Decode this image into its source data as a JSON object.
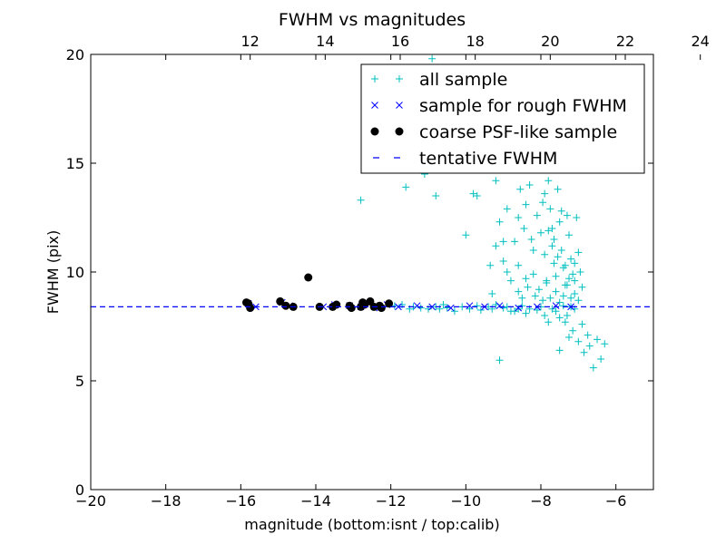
{
  "chart_data": {
    "type": "scatter",
    "title": "FWHM vs magnitudes",
    "xlabel": "magnitude (bottom:isnt / top:calib)",
    "ylabel": "FWHM (pix)",
    "xlim": [
      -20,
      -5
    ],
    "ylim": [
      0,
      20
    ],
    "top_axis": {
      "offset": 27.75,
      "ticks": [
        12,
        14,
        16,
        18,
        20,
        22,
        24
      ],
      "tick_labels": [
        "12",
        "14",
        "16",
        "18",
        "20",
        "22",
        "24"
      ]
    },
    "x_ticks": [
      -20,
      -18,
      -16,
      -14,
      -12,
      -10,
      -8,
      -6
    ],
    "x_tick_labels": [
      "−20",
      "−18",
      "−16",
      "−14",
      "−12",
      "−10",
      "−8",
      "−6"
    ],
    "y_ticks": [
      0,
      5,
      10,
      15,
      20
    ],
    "y_tick_labels": [
      "0",
      "5",
      "10",
      "15",
      "20"
    ],
    "grid": false,
    "legend_position": "top-right",
    "series": [
      {
        "name": "all sample",
        "marker": "plus",
        "color": "#00bfbf",
        "points": [
          [
            -11.9,
            8.45
          ],
          [
            -11.7,
            8.5
          ],
          [
            -11.5,
            8.3
          ],
          [
            -11.4,
            8.4
          ],
          [
            -11.2,
            8.35
          ],
          [
            -11.0,
            8.3
          ],
          [
            -10.8,
            8.4
          ],
          [
            -10.7,
            8.3
          ],
          [
            -10.6,
            8.5
          ],
          [
            -10.5,
            8.35
          ],
          [
            -10.3,
            8.2
          ],
          [
            -10.1,
            8.4
          ],
          [
            -9.9,
            8.3
          ],
          [
            -9.7,
            8.45
          ],
          [
            -9.6,
            8.25
          ],
          [
            -9.4,
            8.4
          ],
          [
            -9.3,
            8.3
          ],
          [
            -9.2,
            8.5
          ],
          [
            -9.0,
            8.35
          ],
          [
            -8.9,
            8.4
          ],
          [
            -8.8,
            8.2
          ],
          [
            -8.6,
            8.3
          ],
          [
            -8.5,
            8.45
          ],
          [
            -8.4,
            8.1
          ],
          [
            -8.3,
            8.3
          ],
          [
            -8.1,
            8.25
          ],
          [
            -8.0,
            8.4
          ],
          [
            -7.9,
            8.0
          ],
          [
            -7.8,
            7.7
          ],
          [
            -7.7,
            8.3
          ],
          [
            -7.6,
            8.2
          ],
          [
            -7.5,
            7.9
          ],
          [
            -7.4,
            8.45
          ],
          [
            -7.3,
            8.0
          ],
          [
            -7.2,
            8.4
          ],
          [
            -7.1,
            8.3
          ],
          [
            -11.6,
            13.9
          ],
          [
            -11.1,
            14.5
          ],
          [
            -10.8,
            13.5
          ],
          [
            -10.5,
            15.6
          ],
          [
            -10.4,
            15.0
          ],
          [
            -10.0,
            11.7
          ],
          [
            -9.8,
            13.6
          ],
          [
            -9.7,
            13.5
          ],
          [
            -9.6,
            15.2
          ],
          [
            -9.2,
            14.2
          ],
          [
            -9.1,
            12.3
          ],
          [
            -9.0,
            11.4
          ],
          [
            -9.1,
            5.95
          ],
          [
            -12.8,
            13.3
          ],
          [
            -10.9,
            19.8
          ],
          [
            -9.3,
            9.0
          ],
          [
            -9.35,
            10.3
          ],
          [
            -9.0,
            10.5
          ],
          [
            -8.9,
            10.0
          ],
          [
            -8.7,
            11.4
          ],
          [
            -8.6,
            10.3
          ],
          [
            -8.55,
            13.8
          ],
          [
            -8.45,
            12.0
          ],
          [
            -8.4,
            9.7
          ],
          [
            -8.3,
            14.0
          ],
          [
            -8.25,
            11.5
          ],
          [
            -8.2,
            9.9
          ],
          [
            -8.1,
            12.6
          ],
          [
            -8.0,
            11.8
          ],
          [
            -7.95,
            13.2
          ],
          [
            -7.9,
            10.8
          ],
          [
            -7.85,
            9.5
          ],
          [
            -7.8,
            14.2
          ],
          [
            -7.75,
            12.9
          ],
          [
            -7.7,
            11.2
          ],
          [
            -7.65,
            10.4
          ],
          [
            -7.6,
            9.8
          ],
          [
            -7.55,
            13.8
          ],
          [
            -7.5,
            12.3
          ],
          [
            -7.45,
            11.0
          ],
          [
            -7.4,
            10.2
          ],
          [
            -7.35,
            9.4
          ],
          [
            -7.3,
            12.6
          ],
          [
            -7.25,
            11.7
          ],
          [
            -7.2,
            10.6
          ],
          [
            -7.15,
            9.9
          ],
          [
            -7.1,
            9.0
          ],
          [
            -7.05,
            12.5
          ],
          [
            -7.0,
            10.9
          ],
          [
            -6.95,
            10.0
          ],
          [
            -6.9,
            9.3
          ],
          [
            -8.15,
            8.9
          ],
          [
            -8.05,
            9.2
          ],
          [
            -7.95,
            8.7
          ],
          [
            -7.85,
            9.6
          ],
          [
            -7.75,
            8.8
          ],
          [
            -7.6,
            9.1
          ],
          [
            -7.5,
            8.6
          ],
          [
            -7.4,
            8.9
          ],
          [
            -7.3,
            9.4
          ],
          [
            -7.2,
            8.8
          ],
          [
            -7.1,
            9.6
          ],
          [
            -7.0,
            8.7
          ],
          [
            -8.7,
            8.2
          ],
          [
            -8.5,
            8.8
          ],
          [
            -8.35,
            9.3
          ],
          [
            -7.15,
            7.3
          ],
          [
            -7.0,
            6.8
          ],
          [
            -6.9,
            7.6
          ],
          [
            -6.85,
            6.3
          ],
          [
            -6.75,
            7.1
          ],
          [
            -6.7,
            6.6
          ],
          [
            -6.6,
            5.6
          ],
          [
            -6.5,
            6.9
          ],
          [
            -6.4,
            6.0
          ],
          [
            -7.35,
            7.7
          ],
          [
            -7.25,
            7.0
          ],
          [
            -7.5,
            6.4
          ],
          [
            -6.3,
            6.7
          ],
          [
            -8.2,
            11.0
          ],
          [
            -7.8,
            11.9
          ],
          [
            -7.45,
            12.8
          ],
          [
            -7.65,
            11.5
          ],
          [
            -7.55,
            10.7
          ],
          [
            -7.35,
            10.3
          ],
          [
            -7.25,
            9.7
          ],
          [
            -7.1,
            10.4
          ],
          [
            -8.6,
            12.5
          ],
          [
            -8.4,
            13.1
          ],
          [
            -7.9,
            13.6
          ],
          [
            -7.7,
            12.0
          ],
          [
            -8.9,
            12.9
          ],
          [
            -9.2,
            11.2
          ],
          [
            -8.8,
            9.6
          ],
          [
            -8.6,
            9.1
          ]
        ]
      },
      {
        "name": "sample for rough FWHM",
        "marker": "x",
        "color": "#0000ff",
        "points": [
          [
            -15.8,
            8.55
          ],
          [
            -15.6,
            8.4
          ],
          [
            -14.9,
            8.6
          ],
          [
            -14.7,
            8.45
          ],
          [
            -13.8,
            8.4
          ],
          [
            -13.5,
            8.5
          ],
          [
            -13.1,
            8.45
          ],
          [
            -12.8,
            8.4
          ],
          [
            -12.7,
            8.6
          ],
          [
            -12.3,
            8.35
          ],
          [
            -12.1,
            8.5
          ],
          [
            -11.8,
            8.4
          ],
          [
            -11.3,
            8.45
          ],
          [
            -10.9,
            8.4
          ],
          [
            -10.4,
            8.35
          ],
          [
            -9.9,
            8.45
          ],
          [
            -9.5,
            8.4
          ],
          [
            -9.1,
            8.45
          ],
          [
            -8.6,
            8.35
          ],
          [
            -8.1,
            8.4
          ],
          [
            -7.6,
            8.45
          ],
          [
            -7.2,
            8.4
          ]
        ]
      },
      {
        "name": "coarse PSF-like sample",
        "marker": "dot",
        "color": "#000000",
        "points": [
          [
            -15.85,
            8.6
          ],
          [
            -15.8,
            8.55
          ],
          [
            -15.75,
            8.35
          ],
          [
            -14.95,
            8.65
          ],
          [
            -14.8,
            8.45
          ],
          [
            -14.6,
            8.4
          ],
          [
            -14.2,
            9.75
          ],
          [
            -13.9,
            8.4
          ],
          [
            -13.55,
            8.4
          ],
          [
            -13.45,
            8.5
          ],
          [
            -13.1,
            8.45
          ],
          [
            -13.05,
            8.35
          ],
          [
            -12.8,
            8.4
          ],
          [
            -12.75,
            8.6
          ],
          [
            -12.7,
            8.5
          ],
          [
            -12.55,
            8.65
          ],
          [
            -12.45,
            8.4
          ],
          [
            -12.3,
            8.45
          ],
          [
            -12.25,
            8.35
          ],
          [
            -12.05,
            8.55
          ]
        ]
      },
      {
        "name": "tentative FWHM",
        "marker": "dashed-line",
        "color": "#0000ff",
        "y": 8.4
      }
    ]
  }
}
